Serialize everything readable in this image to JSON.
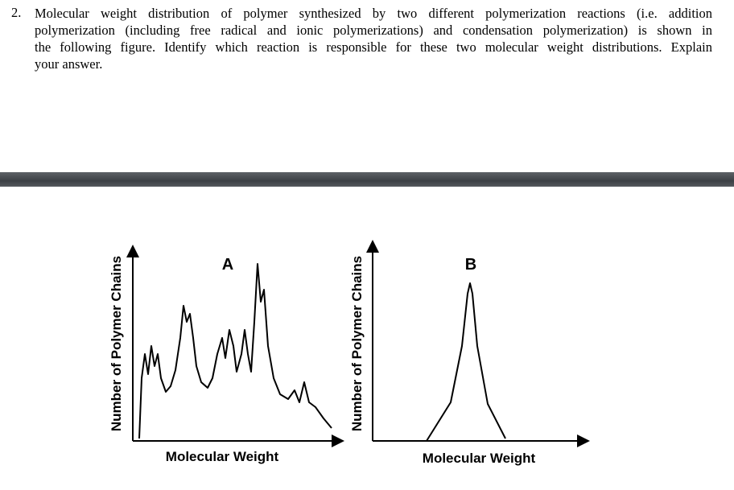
{
  "question": {
    "number": "2.",
    "lines": [
      "Molecular weight distribution of polymer synthesized by two different polymerization reactions (i.e. addition",
      "polymerization (including free radical and ionic polymerizations) and condensation polymerization) is shown in",
      "the following figure. Identify which reaction is responsible for these two molecular weight distributions. Explain",
      "your answer."
    ]
  },
  "figure": {
    "panels": [
      {
        "label": "A",
        "x_label": "Molecular Weight",
        "y_label": "Number of Polymer Chains"
      },
      {
        "label": "B",
        "x_label": "Molecular Weight",
        "y_label": "Number of Polymer Chains"
      }
    ]
  }
}
